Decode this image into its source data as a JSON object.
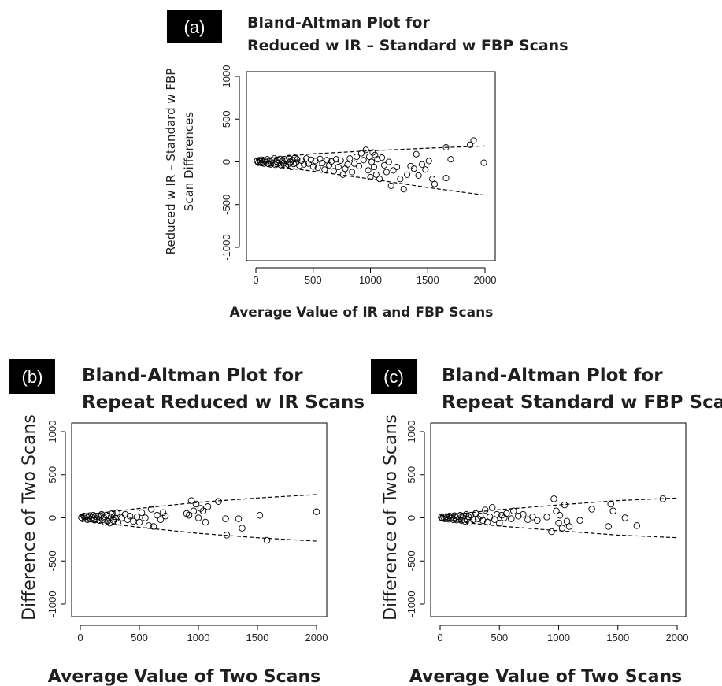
{
  "chart_data": [
    {
      "type": "scatter",
      "panel_label": "(a)",
      "title": [
        "Bland-Altman Plot for",
        "Reduced w IR – Standard w FBP Scans"
      ],
      "xlabel": "Average Value of IR and FBP Scans",
      "ylabel": [
        "Reduced w IR – Standard w FBP",
        "Scan Differences"
      ],
      "xlim": [
        0,
        2000
      ],
      "ylim": [
        -1000,
        1000
      ],
      "x_ticks": [
        0,
        500,
        1000,
        1500,
        2000
      ],
      "y_ticks": [
        -1000,
        -500,
        0,
        500,
        1000
      ],
      "limits_of_agreement": {
        "upper": {
          "x": [
            0,
            500,
            1000,
            1500,
            2000
          ],
          "y": [
            30,
            95,
            130,
            160,
            185
          ]
        },
        "lower": {
          "x": [
            0,
            500,
            1000,
            1500,
            2000
          ],
          "y": [
            -25,
            -110,
            -200,
            -300,
            -390
          ]
        }
      },
      "series": [
        {
          "points": [
            [
              10,
              10
            ],
            [
              20,
              -10
            ],
            [
              30,
              20
            ],
            [
              40,
              5
            ],
            [
              50,
              -15
            ],
            [
              55,
              25
            ],
            [
              60,
              0
            ],
            [
              70,
              -20
            ],
            [
              80,
              15
            ],
            [
              90,
              -5
            ],
            [
              100,
              30
            ],
            [
              110,
              -25
            ],
            [
              120,
              10
            ],
            [
              130,
              -30
            ],
            [
              140,
              20
            ],
            [
              150,
              -10
            ],
            [
              160,
              40
            ],
            [
              170,
              -35
            ],
            [
              180,
              5
            ],
            [
              190,
              25
            ],
            [
              200,
              -15
            ],
            [
              210,
              35
            ],
            [
              220,
              -40
            ],
            [
              230,
              10
            ],
            [
              240,
              -20
            ],
            [
              250,
              30
            ],
            [
              260,
              -50
            ],
            [
              270,
              15
            ],
            [
              280,
              -30
            ],
            [
              290,
              45
            ],
            [
              300,
              0
            ],
            [
              310,
              -60
            ],
            [
              320,
              20
            ],
            [
              330,
              -25
            ],
            [
              340,
              50
            ],
            [
              350,
              -10
            ],
            [
              360,
              30
            ],
            [
              380,
              -45
            ],
            [
              400,
              15
            ],
            [
              420,
              -30
            ],
            [
              440,
              40
            ],
            [
              460,
              -20
            ],
            [
              480,
              25
            ],
            [
              500,
              -55
            ],
            [
              520,
              10
            ],
            [
              540,
              -70
            ],
            [
              560,
              35
            ],
            [
              580,
              -15
            ],
            [
              600,
              -90
            ],
            [
              620,
              20
            ],
            [
              640,
              -40
            ],
            [
              660,
              5
            ],
            [
              680,
              -110
            ],
            [
              700,
              30
            ],
            [
              720,
              -60
            ],
            [
              740,
              15
            ],
            [
              760,
              -150
            ],
            [
              780,
              -80
            ],
            [
              800,
              -30
            ],
            [
              820,
              40
            ],
            [
              840,
              -120
            ],
            [
              860,
              -20
            ],
            [
              880,
              60
            ],
            [
              900,
              -50
            ],
            [
              920,
              100
            ],
            [
              940,
              20
            ],
            [
              960,
              140
            ],
            [
              980,
              -100
            ],
            [
              990,
              60
            ],
            [
              1000,
              -180
            ],
            [
              1010,
              0
            ],
            [
              1020,
              110
            ],
            [
              1030,
              -60
            ],
            [
              1040,
              80
            ],
            [
              1050,
              -150
            ],
            [
              1060,
              30
            ],
            [
              1080,
              -200
            ],
            [
              1100,
              50
            ],
            [
              1120,
              -40
            ],
            [
              1140,
              -120
            ],
            [
              1160,
              0
            ],
            [
              1180,
              -280
            ],
            [
              1200,
              -100
            ],
            [
              1230,
              -60
            ],
            [
              1260,
              -200
            ],
            [
              1290,
              -320
            ],
            [
              1320,
              -150
            ],
            [
              1350,
              -50
            ],
            [
              1380,
              -80
            ],
            [
              1400,
              90
            ],
            [
              1420,
              -160
            ],
            [
              1450,
              -30
            ],
            [
              1480,
              -90
            ],
            [
              1510,
              10
            ],
            [
              1540,
              -200
            ],
            [
              1560,
              -260
            ],
            [
              1660,
              -190
            ],
            [
              1700,
              30
            ],
            [
              1660,
              170
            ],
            [
              1870,
              200
            ],
            [
              1900,
              250
            ],
            [
              1990,
              -10
            ]
          ]
        }
      ]
    },
    {
      "type": "scatter",
      "panel_label": "(b)",
      "title": [
        "Bland-Altman Plot for",
        "Repeat Reduced w IR Scans"
      ],
      "xlabel": "Average Value of Two Scans",
      "ylabel": [
        "Difference of Two Scans"
      ],
      "xlim": [
        0,
        2000
      ],
      "ylim": [
        -1000,
        1000
      ],
      "x_ticks": [
        0,
        500,
        1000,
        1500,
        2000
      ],
      "y_ticks": [
        -1000,
        -500,
        0,
        500,
        1000
      ],
      "limits_of_agreement": {
        "upper": {
          "x": [
            0,
            500,
            1000,
            1500,
            2000
          ],
          "y": [
            30,
            110,
            180,
            230,
            270
          ]
        },
        "lower": {
          "x": [
            0,
            500,
            1000,
            1500,
            2000
          ],
          "y": [
            -30,
            -110,
            -180,
            -230,
            -270
          ]
        }
      },
      "series": [
        {
          "points": [
            [
              10,
              5
            ],
            [
              20,
              -10
            ],
            [
              30,
              20
            ],
            [
              40,
              -5
            ],
            [
              50,
              15
            ],
            [
              60,
              -20
            ],
            [
              70,
              10
            ],
            [
              80,
              25
            ],
            [
              90,
              -15
            ],
            [
              100,
              5
            ],
            [
              110,
              30
            ],
            [
              120,
              -25
            ],
            [
              130,
              15
            ],
            [
              140,
              -10
            ],
            [
              150,
              20
            ],
            [
              160,
              -30
            ],
            [
              170,
              10
            ],
            [
              180,
              40
            ],
            [
              190,
              -20
            ],
            [
              200,
              0
            ],
            [
              210,
              -50
            ],
            [
              220,
              30
            ],
            [
              230,
              -40
            ],
            [
              240,
              20
            ],
            [
              250,
              -60
            ],
            [
              260,
              10
            ],
            [
              270,
              50
            ],
            [
              280,
              -30
            ],
            [
              290,
              15
            ],
            [
              300,
              -10
            ],
            [
              310,
              60
            ],
            [
              320,
              -50
            ],
            [
              350,
              0
            ],
            [
              380,
              40
            ],
            [
              400,
              -20
            ],
            [
              420,
              20
            ],
            [
              450,
              -40
            ],
            [
              480,
              10
            ],
            [
              500,
              -50
            ],
            [
              520,
              60
            ],
            [
              550,
              0
            ],
            [
              580,
              -90
            ],
            [
              600,
              100
            ],
            [
              620,
              -100
            ],
            [
              650,
              30
            ],
            [
              680,
              -20
            ],
            [
              700,
              60
            ],
            [
              720,
              20
            ],
            [
              900,
              50
            ],
            [
              920,
              30
            ],
            [
              940,
              200
            ],
            [
              960,
              80
            ],
            [
              980,
              160
            ],
            [
              1000,
              0
            ],
            [
              1020,
              110
            ],
            [
              1040,
              80
            ],
            [
              1060,
              -50
            ],
            [
              1080,
              130
            ],
            [
              1170,
              190
            ],
            [
              1230,
              -10
            ],
            [
              1240,
              -200
            ],
            [
              1340,
              -10
            ],
            [
              1370,
              -120
            ],
            [
              1520,
              30
            ],
            [
              1580,
              -260
            ],
            [
              2000,
              70
            ]
          ]
        }
      ]
    },
    {
      "type": "scatter",
      "panel_label": "(c)",
      "title": [
        "Bland-Altman Plot for",
        "Repeat Standard w FBP Scans"
      ],
      "xlabel": "Average Value of Two Scans",
      "ylabel": [
        "Difference of Two Scans"
      ],
      "xlim": [
        0,
        2000
      ],
      "ylim": [
        -1000,
        1000
      ],
      "x_ticks": [
        0,
        500,
        1000,
        1500,
        2000
      ],
      "y_ticks": [
        -1000,
        -500,
        0,
        500,
        1000
      ],
      "limits_of_agreement": {
        "upper": {
          "x": [
            0,
            500,
            1000,
            1500,
            2000
          ],
          "y": [
            25,
            95,
            150,
            200,
            230
          ]
        },
        "lower": {
          "x": [
            0,
            500,
            1000,
            1500,
            2000
          ],
          "y": [
            -25,
            -95,
            -150,
            -200,
            -230
          ]
        }
      },
      "series": [
        {
          "points": [
            [
              10,
              5
            ],
            [
              20,
              -5
            ],
            [
              30,
              10
            ],
            [
              40,
              -10
            ],
            [
              50,
              15
            ],
            [
              60,
              0
            ],
            [
              70,
              -15
            ],
            [
              80,
              20
            ],
            [
              90,
              -5
            ],
            [
              100,
              10
            ],
            [
              110,
              -20
            ],
            [
              120,
              25
            ],
            [
              130,
              5
            ],
            [
              140,
              -25
            ],
            [
              150,
              15
            ],
            [
              160,
              -10
            ],
            [
              170,
              30
            ],
            [
              180,
              -30
            ],
            [
              190,
              0
            ],
            [
              200,
              20
            ],
            [
              210,
              -40
            ],
            [
              220,
              40
            ],
            [
              230,
              -15
            ],
            [
              240,
              10
            ],
            [
              250,
              -50
            ],
            [
              260,
              30
            ],
            [
              280,
              -20
            ],
            [
              300,
              50
            ],
            [
              320,
              -10
            ],
            [
              340,
              20
            ],
            [
              360,
              -30
            ],
            [
              380,
              90
            ],
            [
              400,
              -50
            ],
            [
              420,
              10
            ],
            [
              440,
              120
            ],
            [
              460,
              -20
            ],
            [
              480,
              40
            ],
            [
              500,
              -60
            ],
            [
              520,
              30
            ],
            [
              540,
              0
            ],
            [
              560,
              50
            ],
            [
              600,
              -10
            ],
            [
              620,
              80
            ],
            [
              660,
              20
            ],
            [
              700,
              40
            ],
            [
              740,
              -20
            ],
            [
              780,
              10
            ],
            [
              820,
              -30
            ],
            [
              900,
              10
            ],
            [
              940,
              -160
            ],
            [
              960,
              220
            ],
            [
              980,
              80
            ],
            [
              1000,
              -60
            ],
            [
              1010,
              30
            ],
            [
              1030,
              -120
            ],
            [
              1050,
              150
            ],
            [
              1070,
              -40
            ],
            [
              1090,
              -100
            ],
            [
              1180,
              -30
            ],
            [
              1280,
              100
            ],
            [
              1420,
              -100
            ],
            [
              1440,
              160
            ],
            [
              1460,
              80
            ],
            [
              1560,
              0
            ],
            [
              1660,
              -90
            ],
            [
              1880,
              220
            ]
          ]
        }
      ]
    }
  ]
}
